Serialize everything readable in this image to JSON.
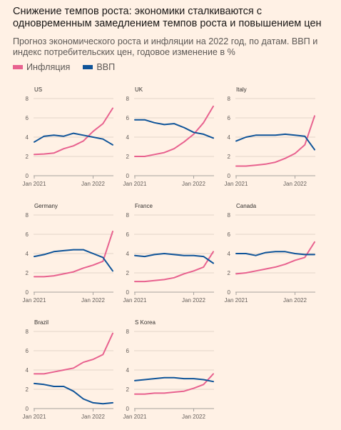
{
  "header": {
    "title": "Снижение темпов роста: экономики сталкиваются с одновременным замедлением темпов роста и повышением цен",
    "subtitle": "Прогноз экономического роста и инфляции на 2022 год, по датам. ВВП и индекс потребительских цен, годовое изменение в %"
  },
  "legend": {
    "inflation_label": "Инфляция",
    "gdp_label": "ВВП"
  },
  "colors": {
    "inflation": "#e8628f",
    "gdp": "#0f5499",
    "background": "#fff1e5",
    "axis": "#a7a29d",
    "grid": "#e3d5c9"
  },
  "chart_data": [
    {
      "type": "line",
      "title": "US",
      "x": [
        "Jan 2021",
        "Mar 2021",
        "May 2021",
        "Jul 2021",
        "Sep 2021",
        "Nov 2021",
        "Jan 2022",
        "Mar 2022",
        "May 2022"
      ],
      "xticks": [
        "Jan 2021",
        "Jan 2022"
      ],
      "ylim": [
        0,
        8
      ],
      "yticks": [
        0,
        2,
        4,
        6,
        8
      ],
      "series": [
        {
          "name": "Инфляция",
          "values": [
            2.2,
            2.25,
            2.35,
            2.8,
            3.1,
            3.6,
            4.6,
            5.4,
            7.0
          ]
        },
        {
          "name": "ВВП",
          "values": [
            3.5,
            4.1,
            4.2,
            4.1,
            4.4,
            4.2,
            4.0,
            3.8,
            3.2
          ]
        }
      ]
    },
    {
      "type": "line",
      "title": "UK",
      "x": [
        "Jan 2021",
        "Mar 2021",
        "May 2021",
        "Jul 2021",
        "Sep 2021",
        "Nov 2021",
        "Jan 2022",
        "Mar 2022",
        "May 2022"
      ],
      "xticks": [
        "Jan 2021",
        "Jan 2022"
      ],
      "ylim": [
        0,
        8
      ],
      "yticks": [
        0,
        2,
        4,
        6,
        8
      ],
      "series": [
        {
          "name": "Инфляция",
          "values": [
            2.0,
            2.0,
            2.2,
            2.4,
            2.8,
            3.5,
            4.3,
            5.5,
            7.2
          ]
        },
        {
          "name": "ВВП",
          "values": [
            5.8,
            5.8,
            5.5,
            5.3,
            5.4,
            5.0,
            4.5,
            4.3,
            3.9
          ]
        }
      ]
    },
    {
      "type": "line",
      "title": "Italy",
      "x": [
        "Jan 2021",
        "Mar 2021",
        "May 2021",
        "Jul 2021",
        "Sep 2021",
        "Nov 2021",
        "Jan 2022",
        "Mar 2022",
        "May 2022"
      ],
      "xticks": [
        "Jan 2021",
        "Jan 2022"
      ],
      "ylim": [
        0,
        8
      ],
      "yticks": [
        0,
        2,
        4,
        6,
        8
      ],
      "series": [
        {
          "name": "Инфляция",
          "values": [
            1.0,
            1.0,
            1.1,
            1.2,
            1.4,
            1.8,
            2.3,
            3.2,
            6.2
          ]
        },
        {
          "name": "ВВП",
          "values": [
            3.6,
            4.0,
            4.2,
            4.2,
            4.2,
            4.3,
            4.2,
            4.1,
            2.7
          ]
        }
      ]
    },
    {
      "type": "line",
      "title": "Germany",
      "x": [
        "Jan 2021",
        "Mar 2021",
        "May 2021",
        "Jul 2021",
        "Sep 2021",
        "Nov 2021",
        "Jan 2022",
        "Mar 2022",
        "May 2022"
      ],
      "xticks": [
        "Jan 2021",
        "Jan 2022"
      ],
      "ylim": [
        0,
        8
      ],
      "yticks": [
        0,
        2,
        4,
        6,
        8
      ],
      "series": [
        {
          "name": "Инфляция",
          "values": [
            1.6,
            1.6,
            1.7,
            1.9,
            2.1,
            2.5,
            2.8,
            3.2,
            6.3
          ]
        },
        {
          "name": "ВВП",
          "values": [
            3.7,
            3.9,
            4.2,
            4.3,
            4.4,
            4.4,
            4.0,
            3.6,
            2.2
          ]
        }
      ]
    },
    {
      "type": "line",
      "title": "France",
      "x": [
        "Jan 2021",
        "Mar 2021",
        "May 2021",
        "Jul 2021",
        "Sep 2021",
        "Nov 2021",
        "Jan 2022",
        "Mar 2022",
        "May 2022"
      ],
      "xticks": [
        "Jan 2021",
        "Jan 2022"
      ],
      "ylim": [
        0,
        8
      ],
      "yticks": [
        0,
        2,
        4,
        6,
        8
      ],
      "series": [
        {
          "name": "Инфляция",
          "values": [
            1.1,
            1.1,
            1.2,
            1.3,
            1.5,
            1.9,
            2.2,
            2.6,
            4.2
          ]
        },
        {
          "name": "ВВП",
          "values": [
            3.8,
            3.7,
            3.9,
            4.0,
            3.9,
            3.8,
            3.8,
            3.7,
            3.0
          ]
        }
      ]
    },
    {
      "type": "line",
      "title": "Canada",
      "x": [
        "Jan 2021",
        "Mar 2021",
        "May 2021",
        "Jul 2021",
        "Sep 2021",
        "Nov 2021",
        "Jan 2022",
        "Mar 2022",
        "May 2022"
      ],
      "xticks": [
        "Jan 2021",
        "Jan 2022"
      ],
      "ylim": [
        0,
        8
      ],
      "yticks": [
        0,
        2,
        4,
        6,
        8
      ],
      "series": [
        {
          "name": "Инфляция",
          "values": [
            1.9,
            2.0,
            2.2,
            2.4,
            2.6,
            2.9,
            3.3,
            3.6,
            5.2
          ]
        },
        {
          "name": "ВВП",
          "values": [
            4.0,
            4.0,
            3.8,
            4.1,
            4.2,
            4.2,
            4.0,
            3.9,
            3.9
          ]
        }
      ]
    },
    {
      "type": "line",
      "title": "Brazil",
      "x": [
        "Jan 2021",
        "Mar 2021",
        "May 2021",
        "Jul 2021",
        "Sep 2021",
        "Nov 2021",
        "Jan 2022",
        "Mar 2022",
        "May 2022"
      ],
      "xticks": [
        "Jan 2021",
        "Jan 2022"
      ],
      "ylim": [
        0,
        8
      ],
      "yticks": [
        0,
        2,
        4,
        6,
        8
      ],
      "series": [
        {
          "name": "Инфляция",
          "values": [
            3.6,
            3.6,
            3.8,
            4.0,
            4.2,
            4.8,
            5.1,
            5.6,
            7.8
          ]
        },
        {
          "name": "ВВП",
          "values": [
            2.6,
            2.5,
            2.3,
            2.3,
            1.8,
            1.0,
            0.6,
            0.5,
            0.6
          ]
        }
      ]
    },
    {
      "type": "line",
      "title": "S Korea",
      "x": [
        "Jan 2021",
        "Mar 2021",
        "May 2021",
        "Jul 2021",
        "Sep 2021",
        "Nov 2021",
        "Jan 2022",
        "Mar 2022",
        "May 2022"
      ],
      "xticks": [
        "Jan 2021",
        "Jan 2022"
      ],
      "ylim": [
        0,
        8
      ],
      "yticks": [
        0,
        2,
        4,
        6,
        8
      ],
      "series": [
        {
          "name": "Инфляция",
          "values": [
            1.5,
            1.5,
            1.6,
            1.6,
            1.7,
            1.8,
            2.1,
            2.5,
            3.6
          ]
        },
        {
          "name": "ВВП",
          "values": [
            2.9,
            3.0,
            3.1,
            3.2,
            3.2,
            3.1,
            3.1,
            3.0,
            2.8
          ]
        }
      ]
    }
  ]
}
